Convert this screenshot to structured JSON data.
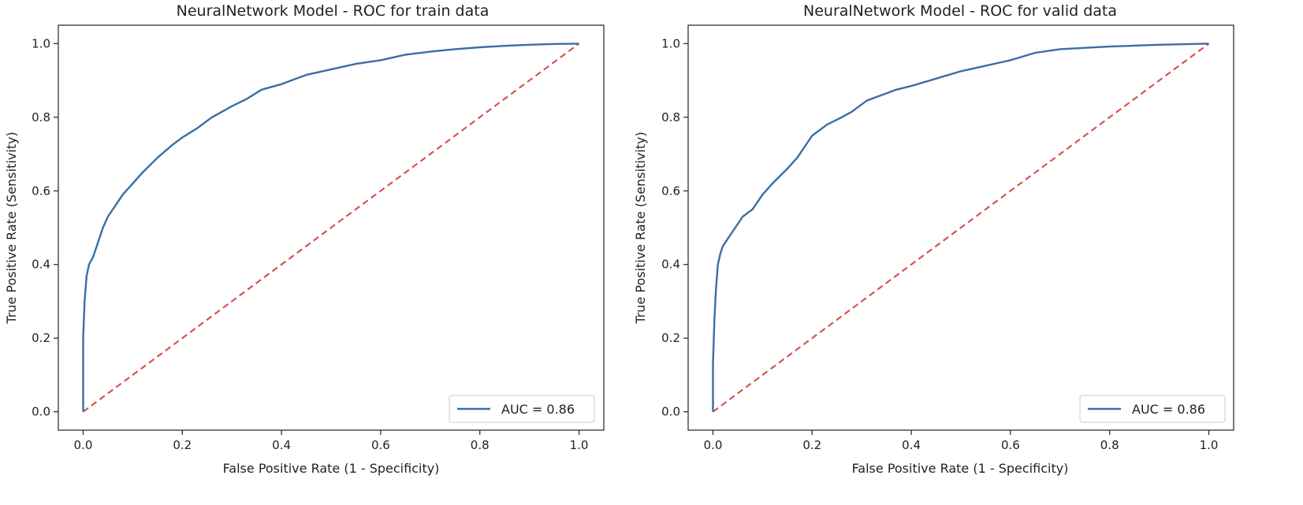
{
  "chart_data": [
    {
      "type": "line",
      "title": "NeuralNetwork Model - ROC for train data",
      "xlabel": "False Positive Rate (1 - Specificity)",
      "ylabel": "True Positive Rate (Sensitivity)",
      "xlim": [
        -0.05,
        1.05
      ],
      "ylim": [
        -0.05,
        1.05
      ],
      "xticks": [
        "0.0",
        "0.2",
        "0.4",
        "0.6",
        "0.8",
        "1.0"
      ],
      "yticks": [
        "0.0",
        "0.2",
        "0.4",
        "0.6",
        "0.8",
        "1.0"
      ],
      "grid": false,
      "legend": {
        "position": "lower-right",
        "label": "AUC = 0.86"
      },
      "series": [
        {
          "name": "AUC = 0.86",
          "color": "#3a6ea5",
          "style": "solid",
          "x": [
            0.0,
            0.0,
            0.003,
            0.007,
            0.012,
            0.02,
            0.03,
            0.04,
            0.05,
            0.065,
            0.08,
            0.1,
            0.12,
            0.15,
            0.18,
            0.2,
            0.23,
            0.26,
            0.3,
            0.33,
            0.36,
            0.4,
            0.45,
            0.5,
            0.55,
            0.6,
            0.65,
            0.7,
            0.75,
            0.8,
            0.85,
            0.9,
            0.95,
            1.0
          ],
          "y": [
            0.0,
            0.2,
            0.3,
            0.37,
            0.4,
            0.42,
            0.46,
            0.5,
            0.53,
            0.56,
            0.59,
            0.62,
            0.65,
            0.69,
            0.725,
            0.745,
            0.77,
            0.8,
            0.83,
            0.85,
            0.875,
            0.89,
            0.915,
            0.93,
            0.945,
            0.955,
            0.97,
            0.978,
            0.985,
            0.99,
            0.994,
            0.997,
            0.999,
            1.0
          ]
        },
        {
          "name": "",
          "color": "#d9534f",
          "style": "dashed",
          "x": [
            0.0,
            1.0
          ],
          "y": [
            0.0,
            1.0
          ]
        }
      ]
    },
    {
      "type": "line",
      "title": "NeuralNetwork Model - ROC for valid data",
      "xlabel": "False Positive Rate (1 - Specificity)",
      "ylabel": "True Positive Rate (Sensitivity)",
      "xlim": [
        -0.05,
        1.05
      ],
      "ylim": [
        -0.05,
        1.05
      ],
      "xticks": [
        "0.0",
        "0.2",
        "0.4",
        "0.6",
        "0.8",
        "1.0"
      ],
      "yticks": [
        "0.0",
        "0.2",
        "0.4",
        "0.6",
        "0.8",
        "1.0"
      ],
      "grid": false,
      "legend": {
        "position": "lower-right",
        "label": "AUC = 0.86"
      },
      "series": [
        {
          "name": "AUC = 0.86",
          "color": "#3a6ea5",
          "style": "solid",
          "x": [
            0.0,
            0.0,
            0.003,
            0.006,
            0.01,
            0.015,
            0.02,
            0.03,
            0.04,
            0.05,
            0.06,
            0.08,
            0.1,
            0.12,
            0.15,
            0.17,
            0.19,
            0.2,
            0.23,
            0.26,
            0.28,
            0.31,
            0.34,
            0.37,
            0.4,
            0.45,
            0.5,
            0.55,
            0.6,
            0.65,
            0.7,
            0.8,
            0.9,
            1.0
          ],
          "y": [
            0.0,
            0.13,
            0.25,
            0.33,
            0.4,
            0.43,
            0.45,
            0.47,
            0.49,
            0.51,
            0.53,
            0.55,
            0.59,
            0.62,
            0.66,
            0.69,
            0.73,
            0.75,
            0.78,
            0.8,
            0.815,
            0.845,
            0.86,
            0.875,
            0.885,
            0.905,
            0.925,
            0.94,
            0.955,
            0.975,
            0.985,
            0.992,
            0.997,
            1.0
          ]
        },
        {
          "name": "",
          "color": "#d9534f",
          "style": "dashed",
          "x": [
            0.0,
            1.0
          ],
          "y": [
            0.0,
            1.0
          ]
        }
      ]
    }
  ]
}
